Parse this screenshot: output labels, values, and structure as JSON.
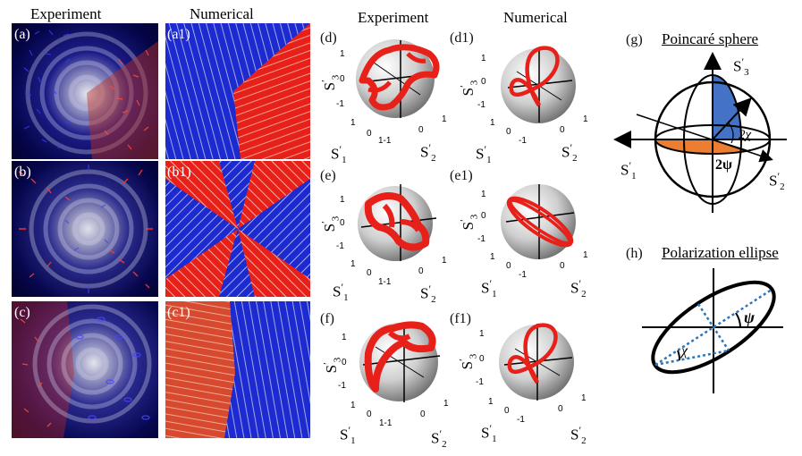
{
  "columns": {
    "experiment_left": "Experiment",
    "numerical_left": "Numerical",
    "experiment_mid": "Experiment",
    "numerical_mid": "Numerical"
  },
  "panels": {
    "a": "(a)",
    "a1": "(a1)",
    "b": "(b)",
    "b1": "(b1)",
    "c": "(c)",
    "c1": "(c1)",
    "d": "(d)",
    "d1": "(d1)",
    "e": "(e)",
    "e1": "(e1)",
    "f": "(f)",
    "f1": "(f1)",
    "g": "(g)",
    "h": "(h)"
  },
  "axes": {
    "s1": "S",
    "s2": "S",
    "s3": "S",
    "sub1": "1",
    "sub2": "2",
    "sub3": "3",
    "prime": "′"
  },
  "ticks": {
    "pos1": "1",
    "zero": "0",
    "neg1": "-1",
    "pair": "1-1",
    "minus1": "-1"
  },
  "poincare": {
    "title": "Poincaré sphere",
    "two_chi": "2χ",
    "two_psi": "2ψ"
  },
  "ellipse": {
    "title": "Polarization ellipse",
    "psi": "ψ",
    "chi": "χ"
  },
  "colors": {
    "red": "#e8201a",
    "blue": "#1c2ad0",
    "sphere_blue": "#4472c4",
    "sphere_orange": "#ed7d31",
    "dotted_blue": "#2e75b6"
  }
}
